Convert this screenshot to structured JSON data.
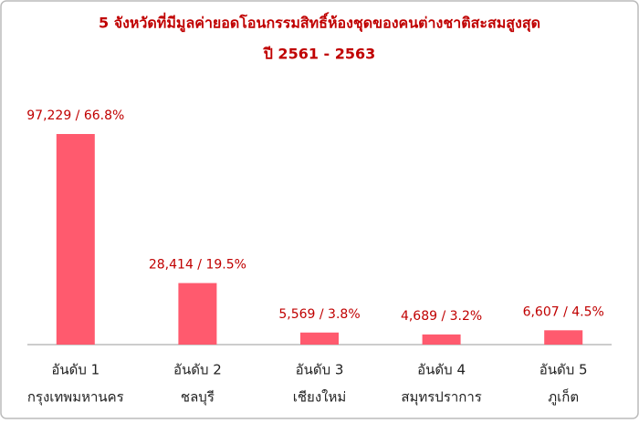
{
  "chart_data": {
    "type": "bar",
    "title": "5 จังหวัดที่มีมูลค่ายอดโอนกรรมสิทธิ์ห้องชุดของคนต่างชาติสะสมสูงสุด",
    "subtitle": "ปี 2561 - 2563",
    "categories": [
      [
        "อันดับ 1",
        "กรุงเทพมหานคร"
      ],
      [
        "อันดับ 2",
        "ชลบุรี"
      ],
      [
        "อันดับ 3",
        "เชียงใหม่"
      ],
      [
        "อันดับ 4",
        "สมุทรปราการ"
      ],
      [
        "อันดับ 5",
        "ภูเก็ต"
      ]
    ],
    "values": [
      97229,
      28414,
      5569,
      4689,
      6607
    ],
    "value_labels": [
      "97,229 / 66.8%",
      "28,414 / 19.5%",
      "5,569 / 3.8%",
      "4,689 / 3.2%",
      "6,607 / 4.5%"
    ],
    "color": "#ff5a6e",
    "label_color": "#c00000"
  }
}
